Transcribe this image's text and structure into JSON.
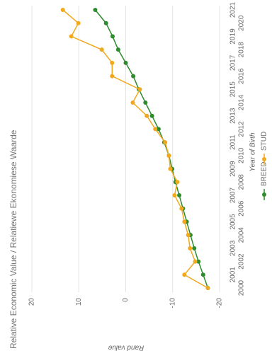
{
  "chart_data": {
    "type": "line",
    "title": "Relative Economic Value / Relatiewe Ekonomiese Waarde",
    "x_label": "Year of Birth",
    "y_label": "Rand value",
    "categories": [
      "2000",
      "2001",
      "2002",
      "2003",
      "2004",
      "2005",
      "2006",
      "2007",
      "2008",
      "2009",
      "2010",
      "2011",
      "2012",
      "2013",
      "2014",
      "2015",
      "2016",
      "2017",
      "2018",
      "2019",
      "2020",
      "2021"
    ],
    "series": [
      {
        "name": "BREED",
        "color": "#2e8b2e",
        "values": [
          -17.5,
          -16.5,
          -15.5,
          -14.6,
          -13.8,
          -13,
          -12.2,
          -11.4,
          -10.6,
          -9.9,
          -9.2,
          -8.2,
          -7,
          -5.6,
          -4.2,
          -2.8,
          -1.6,
          0,
          1.6,
          2.8,
          4.2,
          6.5
        ]
      },
      {
        "name": "STUD",
        "color": "#f2a81d",
        "values": [
          -17.5,
          -12.5,
          -14.8,
          -13.7,
          -13.3,
          -12.5,
          -11.9,
          -10.4,
          -11,
          -9.5,
          -9.2,
          -8.4,
          -6.3,
          -4.5,
          -1.5,
          -3,
          2.9,
          2.9,
          5.1,
          11.6,
          10.1,
          13.4
        ]
      }
    ],
    "ylim": [
      -20,
      20
    ],
    "yticks": [
      -20,
      -10,
      0,
      10,
      20
    ],
    "grid": true,
    "legend": "bottom"
  }
}
